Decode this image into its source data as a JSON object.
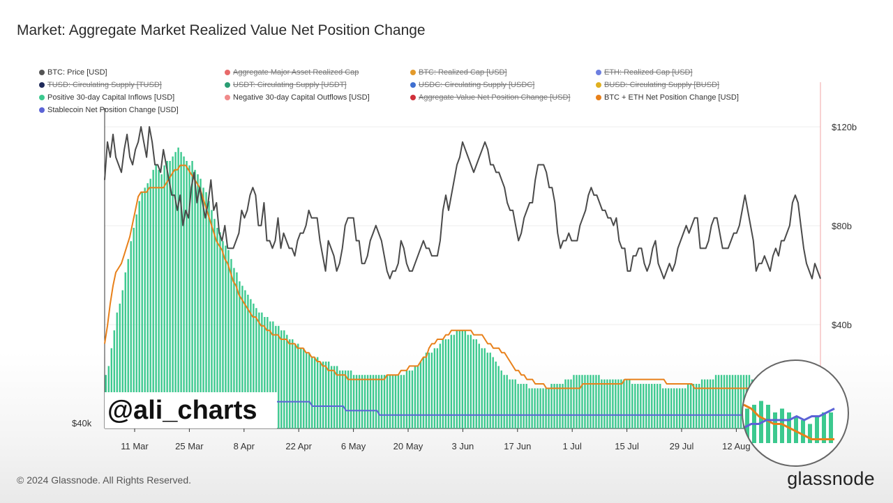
{
  "title": "Market: Aggregate Market Realized Value Net Position Change",
  "footer": "© 2024 Glassnode. All Rights Reserved.",
  "brand": "glassnode",
  "watermark": "@ali_charts",
  "legend": [
    {
      "label": "BTC: Price [USD]",
      "color": "#555555",
      "active": true
    },
    {
      "label": "Aggregate Major Asset Realized Cap",
      "color": "#e86a6a",
      "active": false
    },
    {
      "label": "BTC: Realized Cap [USD]",
      "color": "#e39a2b",
      "active": false
    },
    {
      "label": "ETH: Realized Cap [USD]",
      "color": "#6d7fe0",
      "active": false
    },
    {
      "label": "TUSD: Circulating Supply [TUSD]",
      "color": "#1f2a5a",
      "active": false
    },
    {
      "label": "USDT: Circulating Supply [USDT]",
      "color": "#2a9d73",
      "active": false
    },
    {
      "label": "USDC: Circulating Supply [USDC]",
      "color": "#3f6fd0",
      "active": false
    },
    {
      "label": "BUSD: Circulating Supply [BUSD]",
      "color": "#e0b020",
      "active": false
    },
    {
      "label": "Positive 30-day Capital Inflows [USD]",
      "color": "#3cc98f",
      "active": true
    },
    {
      "label": "Negative 30-day Capital Outflows [USD]",
      "color": "#f08a8a",
      "active": true
    },
    {
      "label": "Aggregate Value Net Position Change [USD]",
      "color": "#d0303a",
      "active": false
    },
    {
      "label": "BTC + ETH Net Position Change [USD]",
      "color": "#e8801a",
      "active": true
    },
    {
      "label": "Stablecoin Net Position Change [USD]",
      "color": "#5b63d6",
      "active": true
    }
  ],
  "chart_data": {
    "type": "bar",
    "x_ticks": [
      "11 Mar",
      "25 Mar",
      "8 Apr",
      "22 Apr",
      "6 May",
      "20 May",
      "3 Jun",
      "17 Jun",
      "1 Jul",
      "15 Jul",
      "29 Jul",
      "12 Aug"
    ],
    "y_left": {
      "ticks": [
        "$40k"
      ]
    },
    "y_right": {
      "ticks": [
        "$120b",
        "$80b",
        "$40b"
      ]
    },
    "colors": {
      "inflows": "#3cc98f",
      "btc_eth": "#e8801a",
      "stable": "#5b63d6",
      "price": "#4a4a4a"
    },
    "series": [
      {
        "name": "BTC: Price [USD]",
        "type": "line",
        "values": [
          66,
          71,
          69,
          72,
          69,
          68,
          67,
          70,
          72,
          69,
          68,
          70,
          71,
          73,
          71,
          69,
          73,
          71,
          68,
          68,
          67,
          70,
          68,
          66,
          64,
          64,
          62,
          64,
          60,
          62,
          61,
          65,
          67,
          63,
          65,
          63,
          61,
          63,
          66,
          62,
          63,
          59,
          58,
          60,
          57,
          57,
          57,
          58,
          59,
          62,
          61,
          62,
          64,
          65,
          64,
          60,
          60,
          63,
          58,
          58,
          57,
          58,
          61,
          57,
          59,
          58,
          57,
          57,
          56,
          58,
          59,
          59,
          60,
          62,
          61,
          61,
          61,
          58,
          56,
          54,
          58,
          57,
          56,
          54,
          55,
          57,
          60,
          61,
          61,
          61,
          58,
          58,
          55,
          55,
          56,
          58,
          59,
          60,
          59,
          58,
          56,
          54,
          53,
          54,
          54,
          55,
          58,
          57,
          55,
          54,
          54,
          55,
          56,
          57,
          58,
          57,
          57,
          56,
          56,
          56,
          58,
          62,
          64,
          62,
          64,
          66,
          68,
          69,
          71,
          70,
          69,
          68,
          67,
          68,
          69,
          70,
          71,
          70,
          68,
          68,
          67,
          67,
          66,
          65,
          63,
          62,
          62,
          60,
          58,
          59,
          61,
          62,
          63,
          63,
          66,
          68,
          68,
          68,
          67,
          65,
          65,
          63,
          59,
          57,
          58,
          58,
          59,
          58,
          58,
          58,
          60,
          61,
          62,
          64,
          65,
          64,
          64,
          63,
          62,
          62,
          61,
          61,
          60,
          61,
          58,
          57,
          57,
          54,
          54,
          56,
          56,
          57,
          57,
          55,
          54,
          55,
          57,
          58,
          55,
          54,
          53,
          54,
          55,
          54,
          55,
          57,
          58,
          59,
          60,
          59,
          60,
          61,
          61,
          57,
          57,
          57,
          58,
          60,
          61,
          61,
          59,
          57,
          57,
          57,
          58,
          59,
          59,
          60,
          62,
          64,
          62,
          60,
          58,
          54,
          55,
          55,
          56,
          55,
          54,
          56,
          57,
          56,
          58,
          58,
          59,
          60,
          63,
          64,
          63,
          60,
          57,
          55,
          54,
          53,
          55,
          54,
          53
        ]
      },
      {
        "name": "Positive 30-day Capital Inflows [USD]",
        "type": "bar",
        "values": [
          12,
          14,
          18,
          22,
          26,
          28,
          31,
          35,
          38,
          42,
          45,
          48,
          51,
          53,
          54,
          55,
          56,
          58,
          59,
          58,
          57,
          59,
          60,
          60,
          61,
          62,
          63,
          62,
          61,
          60,
          59,
          60,
          58,
          57,
          56,
          54,
          53,
          51,
          49,
          47,
          45,
          44,
          42,
          41,
          40,
          38,
          36,
          35,
          33,
          32,
          31,
          30,
          29,
          28,
          27,
          26,
          26,
          25,
          25,
          24,
          24,
          23,
          23,
          22,
          22,
          21,
          20,
          20,
          19,
          19,
          18,
          18,
          17,
          17,
          16,
          16,
          16,
          15,
          15,
          15,
          15,
          14,
          14,
          14,
          13,
          13,
          13,
          13,
          13,
          12,
          12,
          12,
          12,
          12,
          12,
          12,
          12,
          12,
          12,
          12,
          12,
          12,
          12,
          12,
          12,
          12,
          12,
          12,
          13,
          13,
          13,
          14,
          14,
          15,
          16,
          17,
          17,
          17,
          18,
          18,
          19,
          20,
          20,
          20,
          21,
          21,
          22,
          22,
          22,
          22,
          21,
          21,
          20,
          20,
          19,
          18,
          18,
          17,
          17,
          16,
          15,
          14,
          13,
          12,
          12,
          11,
          11,
          11,
          10,
          10,
          10,
          10,
          9,
          9,
          9,
          9,
          9,
          9,
          9,
          9,
          10,
          10,
          10,
          10,
          10,
          11,
          11,
          11,
          12,
          12,
          12,
          12,
          12,
          12,
          12,
          12,
          12,
          12,
          11,
          11,
          11,
          11,
          11,
          11,
          11,
          11,
          11,
          11,
          11,
          10,
          10,
          10,
          10,
          10,
          10,
          10,
          10,
          10,
          10,
          10,
          9,
          9,
          9,
          9,
          9,
          9,
          9,
          9,
          9,
          10,
          10,
          10,
          10,
          10,
          11,
          11,
          11,
          11,
          11,
          12,
          12,
          12,
          12,
          12,
          12,
          12,
          12,
          12,
          12,
          12,
          12,
          12,
          11,
          11,
          11,
          11,
          11,
          10,
          10,
          10,
          10,
          10,
          10,
          10,
          10,
          9,
          9,
          8,
          8,
          7,
          7,
          7,
          6,
          6,
          6,
          6,
          6
        ]
      },
      {
        "name": "BTC + ETH Net Position Change [USD]",
        "type": "line",
        "values": [
          19,
          23,
          28,
          32,
          35,
          36,
          37,
          39,
          41,
          43,
          46,
          49,
          52,
          53,
          53,
          53,
          54,
          54,
          54,
          54,
          54,
          54,
          55,
          56,
          57,
          58,
          58,
          59,
          59,
          59,
          58,
          57,
          56,
          55,
          54,
          52,
          50,
          48,
          46,
          44,
          42,
          41,
          40,
          38,
          37,
          35,
          33,
          32,
          30,
          29,
          28,
          27,
          26,
          25,
          25,
          24,
          23,
          23,
          22,
          22,
          21,
          21,
          21,
          20,
          20,
          20,
          19,
          19,
          19,
          18,
          18,
          18,
          17,
          17,
          16,
          16,
          15,
          15,
          14,
          14,
          13,
          13,
          13,
          12,
          12,
          12,
          12,
          11,
          11,
          11,
          11,
          11,
          11,
          11,
          11,
          11,
          11,
          11,
          11,
          11,
          11,
          12,
          12,
          12,
          12,
          12,
          13,
          13,
          13,
          14,
          14,
          14,
          14,
          15,
          16,
          16,
          18,
          19,
          19,
          20,
          20,
          20,
          21,
          21,
          22,
          22,
          22,
          22,
          22,
          22,
          22,
          22,
          21,
          21,
          21,
          21,
          20,
          19,
          19,
          18,
          18,
          18,
          17,
          17,
          16,
          15,
          14,
          13,
          13,
          12,
          12,
          11,
          11,
          11,
          10,
          10,
          10,
          10,
          9,
          9,
          9,
          9,
          9,
          9,
          9,
          9,
          9,
          9,
          9,
          9,
          9,
          10,
          10,
          10,
          10,
          10,
          10,
          10,
          10,
          10,
          10,
          10,
          10,
          10,
          10,
          10,
          11,
          11,
          11,
          11,
          11,
          11,
          11,
          11,
          11,
          11,
          11,
          11,
          11,
          11,
          11,
          10,
          10,
          10,
          10,
          10,
          10,
          10,
          10,
          10,
          10,
          9,
          9,
          9,
          9,
          9,
          9,
          9,
          9,
          9,
          9,
          9,
          9,
          9,
          9,
          9,
          9,
          9,
          9,
          9,
          9,
          9,
          9,
          9,
          9,
          9,
          9,
          9,
          9,
          9,
          9,
          9,
          9,
          9,
          8,
          8,
          8,
          7,
          6,
          5,
          4,
          3,
          2,
          1,
          1,
          1,
          1
        ]
      },
      {
        "name": "Stablecoin Net Position Change [USD]",
        "type": "line",
        "values": [
          5,
          5,
          5,
          5,
          5,
          5,
          5,
          5,
          5,
          5,
          5,
          5,
          5,
          5,
          5,
          5,
          5,
          5,
          5,
          5,
          5,
          5,
          5,
          5,
          5,
          5,
          5,
          5,
          5,
          5,
          5,
          5,
          5,
          5,
          5,
          5,
          5,
          5,
          5,
          5,
          5,
          5,
          5,
          5,
          6,
          6,
          6,
          6,
          6,
          6,
          6,
          6,
          6,
          6,
          6,
          6,
          6,
          6,
          6,
          6,
          6,
          6,
          6,
          6,
          6,
          6,
          6,
          6,
          6,
          6,
          6,
          6,
          6,
          6,
          5,
          5,
          5,
          5,
          5,
          5,
          5,
          5,
          5,
          5,
          5,
          5,
          4,
          4,
          4,
          4,
          4,
          4,
          4,
          4,
          4,
          4,
          4,
          4,
          3,
          3,
          3,
          3,
          3,
          3,
          3,
          3,
          3,
          3,
          3,
          3,
          3,
          3,
          3,
          3,
          3,
          3,
          3,
          3,
          3,
          3,
          3,
          3,
          3,
          3,
          3,
          3,
          3,
          3,
          3,
          3,
          3,
          3,
          3,
          3,
          3,
          3,
          3,
          3,
          3,
          3,
          3,
          3,
          3,
          3,
          3,
          3,
          3,
          3,
          3,
          3,
          3,
          3,
          3,
          3,
          3,
          3,
          3,
          3,
          3,
          3,
          3,
          3,
          3,
          3,
          3,
          3,
          3,
          3,
          3,
          3,
          3,
          3,
          3,
          3,
          3,
          3,
          3,
          3,
          3,
          3,
          3,
          3,
          3,
          3,
          3,
          3,
          3,
          3,
          3,
          3,
          3,
          3,
          3,
          3,
          3,
          3,
          3,
          3,
          3,
          3,
          3,
          3,
          3,
          3,
          3,
          3,
          3,
          3,
          3,
          3,
          3,
          3,
          3,
          3,
          3,
          3,
          3,
          3,
          3,
          3,
          3,
          3,
          3,
          3,
          3,
          3,
          3,
          3,
          3,
          3,
          3,
          3,
          3,
          3,
          3,
          3,
          4,
          4,
          4,
          4,
          4,
          4,
          4,
          5,
          5,
          5,
          5,
          5,
          5,
          6,
          6,
          6,
          7,
          7,
          7,
          8
        ]
      }
    ],
    "zoom_inset": {
      "inflows": [
        9,
        10,
        11,
        10,
        8,
        9,
        8,
        7,
        6,
        5,
        7,
        8,
        8
      ],
      "btc_eth": [
        10,
        9,
        7,
        6,
        5,
        5,
        4,
        3,
        2,
        1,
        1,
        1,
        1
      ],
      "stable": [
        4,
        5,
        5,
        6,
        6,
        6,
        6,
        7,
        6,
        7,
        7,
        8,
        9
      ]
    }
  }
}
